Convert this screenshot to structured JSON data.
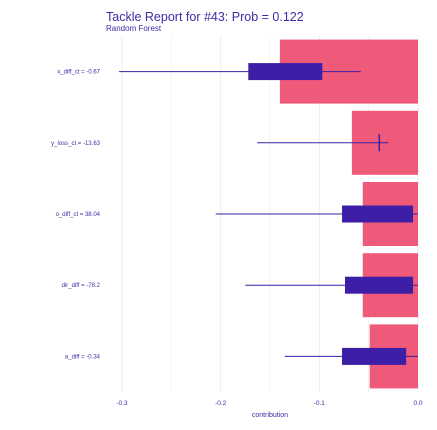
{
  "chart_data": {
    "type": "bar",
    "title": "Tackle Report for #43: Prob = 0.122",
    "subtitle": "Random Forest",
    "xlabel": "contribution",
    "ylabel": "",
    "xlim": [
      -0.31,
      0.0
    ],
    "x_ticks": [
      "-0.3",
      "-0.2",
      "-0.1",
      "0.0"
    ],
    "grid": true,
    "legend": "none",
    "colors": {
      "bar": "#f05a7a",
      "box": "#3d1ea6",
      "whisker": "#3d1ea6",
      "text": "#3b2ea6",
      "grid": "#ececec"
    },
    "categories": [
      "x_diff_ct = -0.67",
      "y_loss_ct = -13.63",
      "o_diff_ct = 38.04",
      "dir_diff = -78.2",
      "a_diff = -0.34"
    ],
    "values": [
      -0.14,
      -0.067,
      -0.056,
      -0.056,
      -0.049
    ],
    "whisker_low": [
      -0.303,
      -0.163,
      -0.205,
      -0.175,
      -0.135
    ],
    "whisker_high": [
      -0.058,
      -0.03,
      0.0,
      0.0,
      0.0
    ],
    "box_low": [
      -0.172,
      -0.04,
      -0.077,
      -0.074,
      -0.077
    ],
    "box_high": [
      -0.097,
      -0.039,
      -0.005,
      -0.005,
      -0.012
    ]
  }
}
